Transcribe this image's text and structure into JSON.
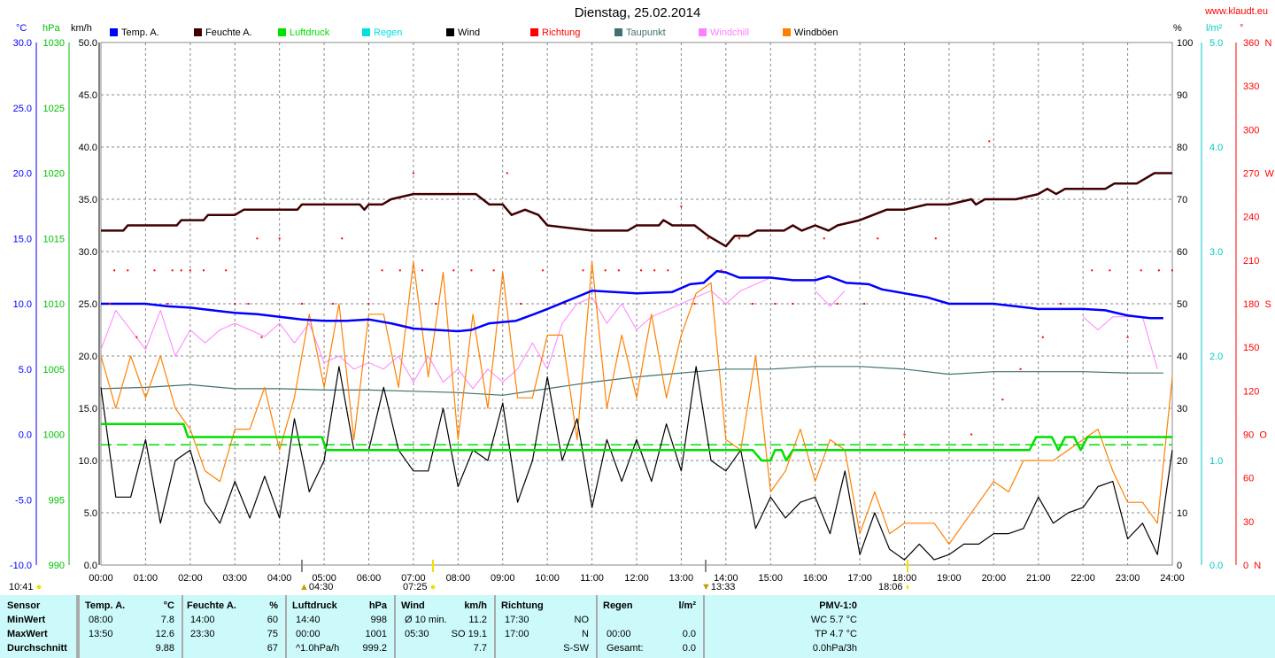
{
  "title": "Dienstag, 25.02.2014",
  "site": "www.klaudt.eu",
  "units": {
    "temp": "°C",
    "pressure": "hPa",
    "wind": "km/h",
    "humidity": "%",
    "rain": "l/m²",
    "direction": "°"
  },
  "legend": [
    {
      "label": "Temp. A.",
      "color": "#0000ff"
    },
    {
      "label": "Feuchte A.",
      "color": "#400000"
    },
    {
      "label": "Luftdruck",
      "color": "#00e000"
    },
    {
      "label": "Regen",
      "color": "#00e0e0"
    },
    {
      "label": "Wind",
      "color": "#000000"
    },
    {
      "label": "Richtung",
      "color": "#ff0000"
    },
    {
      "label": "Taupunkt",
      "color": "#407070"
    },
    {
      "label": "Windchill",
      "color": "#ff80ff"
    },
    {
      "label": "Windböen",
      "color": "#ff8000"
    }
  ],
  "astro": {
    "moon_time": "10:41",
    "moonset": "04:30",
    "sunrise": "07:25",
    "transit": "13:33",
    "sunset": "18:06"
  },
  "chart_data": {
    "type": "line",
    "title": "Dienstag, 25.02.2014",
    "x_ticks": [
      "00:00",
      "01:00",
      "02:00",
      "03:00",
      "04:00",
      "05:00",
      "06:00",
      "07:00",
      "08:00",
      "09:00",
      "10:00",
      "11:00",
      "12:00",
      "13:00",
      "14:00",
      "15:00",
      "16:00",
      "17:00",
      "18:00",
      "19:00",
      "20:00",
      "21:00",
      "22:00",
      "23:00",
      "24:00"
    ],
    "axes": {
      "temp": {
        "range": [
          -10,
          30
        ],
        "ticks": [
          "-10.0",
          "-5.0",
          "0.0",
          "5.0",
          "10.0",
          "15.0",
          "20.0",
          "25.0",
          "30.0"
        ]
      },
      "pressure": {
        "range": [
          990,
          1030
        ],
        "ticks": [
          "990",
          "995",
          "1000",
          "1005",
          "1010",
          "1015",
          "1020",
          "1025",
          "1030"
        ]
      },
      "wind": {
        "range": [
          0,
          50
        ],
        "ticks": [
          "0.0",
          "5.0",
          "10.0",
          "15.0",
          "20.0",
          "25.0",
          "30.0",
          "35.0",
          "40.0",
          "45.0",
          "50.0"
        ]
      },
      "humidity": {
        "range": [
          0,
          100
        ],
        "ticks": [
          "0",
          "10",
          "20",
          "30",
          "40",
          "50",
          "60",
          "70",
          "80",
          "90",
          "100"
        ]
      },
      "rain": {
        "range": [
          0,
          5
        ],
        "ticks": [
          "0.0",
          "1.0",
          "2.0",
          "3.0",
          "4.0",
          "5.0"
        ]
      },
      "direction": {
        "range": [
          0,
          360
        ],
        "ticks": [
          "0  N",
          "30",
          "60",
          "90  O",
          "120",
          "150",
          "180  S",
          "210",
          "240",
          "270  W",
          "300",
          "330",
          "360  N"
        ]
      }
    },
    "grid": true,
    "series": {
      "temperature": [
        [
          0,
          10.0
        ],
        [
          1,
          10.0
        ],
        [
          1.5,
          9.8
        ],
        [
          2,
          9.7
        ],
        [
          2.5,
          9.5
        ],
        [
          3,
          9.3
        ],
        [
          3.5,
          9.2
        ],
        [
          4,
          9.0
        ],
        [
          4.5,
          8.8
        ],
        [
          5,
          8.7
        ],
        [
          5.5,
          8.7
        ],
        [
          6,
          8.8
        ],
        [
          6.5,
          8.5
        ],
        [
          7,
          8.1
        ],
        [
          7.5,
          8.0
        ],
        [
          8,
          7.9
        ],
        [
          8.3,
          8.0
        ],
        [
          8.7,
          8.5
        ],
        [
          9.3,
          8.7
        ],
        [
          9.7,
          9.2
        ],
        [
          10,
          9.6
        ],
        [
          10.5,
          10.3
        ],
        [
          11,
          11.0
        ],
        [
          11.5,
          10.9
        ],
        [
          12,
          10.8
        ],
        [
          12.8,
          10.9
        ],
        [
          13.2,
          11.5
        ],
        [
          13.5,
          11.6
        ],
        [
          13.8,
          12.5
        ],
        [
          14,
          12.4
        ],
        [
          14.3,
          12.0
        ],
        [
          15,
          12.0
        ],
        [
          15.5,
          11.8
        ],
        [
          16,
          11.8
        ],
        [
          16.3,
          12.1
        ],
        [
          16.7,
          11.6
        ],
        [
          17.2,
          11.5
        ],
        [
          17.5,
          11.1
        ],
        [
          18,
          10.8
        ],
        [
          18.5,
          10.5
        ],
        [
          19,
          10.0
        ],
        [
          20,
          10.0
        ],
        [
          20.5,
          9.8
        ],
        [
          21,
          9.6
        ],
        [
          22,
          9.6
        ],
        [
          22.5,
          9.5
        ],
        [
          23,
          9.1
        ],
        [
          23.5,
          8.9
        ],
        [
          23.8,
          8.9
        ]
      ],
      "humidity": [
        [
          0,
          64
        ],
        [
          0.5,
          64
        ],
        [
          0.6,
          65
        ],
        [
          1.7,
          65
        ],
        [
          1.8,
          66
        ],
        [
          2.3,
          66
        ],
        [
          2.4,
          67
        ],
        [
          3,
          67
        ],
        [
          3.2,
          68
        ],
        [
          4.4,
          68
        ],
        [
          4.5,
          69
        ],
        [
          5.8,
          69
        ],
        [
          5.9,
          68
        ],
        [
          6,
          69
        ],
        [
          6.3,
          69
        ],
        [
          6.5,
          70
        ],
        [
          7,
          71
        ],
        [
          8.4,
          71
        ],
        [
          8.7,
          69
        ],
        [
          9,
          69
        ],
        [
          9.2,
          67
        ],
        [
          9.5,
          68
        ],
        [
          9.8,
          67
        ],
        [
          10,
          65
        ],
        [
          11,
          64
        ],
        [
          11.8,
          64
        ],
        [
          12,
          65
        ],
        [
          12.5,
          65
        ],
        [
          12.6,
          66
        ],
        [
          12.8,
          65
        ],
        [
          13.3,
          65
        ],
        [
          13.6,
          63
        ],
        [
          14,
          61
        ],
        [
          14.2,
          63
        ],
        [
          14.5,
          63
        ],
        [
          14.7,
          64
        ],
        [
          15.3,
          64
        ],
        [
          15.5,
          65
        ],
        [
          15.7,
          64
        ],
        [
          16,
          65
        ],
        [
          16.3,
          64
        ],
        [
          16.5,
          65
        ],
        [
          17,
          66
        ],
        [
          17.3,
          67
        ],
        [
          17.6,
          68
        ],
        [
          18,
          68
        ],
        [
          18.5,
          69
        ],
        [
          19,
          69
        ],
        [
          19.5,
          70
        ],
        [
          19.6,
          69
        ],
        [
          19.8,
          70
        ],
        [
          20.5,
          70
        ],
        [
          21,
          71
        ],
        [
          21.2,
          72
        ],
        [
          21.4,
          71
        ],
        [
          21.6,
          72
        ],
        [
          22.5,
          72
        ],
        [
          22.7,
          73
        ],
        [
          23.2,
          73
        ],
        [
          23.4,
          74
        ],
        [
          23.6,
          75
        ],
        [
          24,
          75
        ]
      ],
      "pressure": [
        [
          0,
          1000.8
        ],
        [
          1.85,
          1000.8
        ],
        [
          1.95,
          999.8
        ],
        [
          4.95,
          999.8
        ],
        [
          5.05,
          998.8
        ],
        [
          14.6,
          998.8
        ],
        [
          14.8,
          998.0
        ],
        [
          15.0,
          998.0
        ],
        [
          15.1,
          998.8
        ],
        [
          15.25,
          998.8
        ],
        [
          15.35,
          998.0
        ],
        [
          15.5,
          998.8
        ],
        [
          20.8,
          998.8
        ],
        [
          20.95,
          999.8
        ],
        [
          21.3,
          999.8
        ],
        [
          21.45,
          998.8
        ],
        [
          21.6,
          999.8
        ],
        [
          21.8,
          999.8
        ],
        [
          21.95,
          998.8
        ],
        [
          22.1,
          999.8
        ],
        [
          24,
          999.8
        ]
      ],
      "pressure_average": 999.2,
      "dewpoint": [
        [
          0,
          3.5
        ],
        [
          1,
          3.6
        ],
        [
          2,
          3.8
        ],
        [
          3,
          3.5
        ],
        [
          4,
          3.5
        ],
        [
          5,
          3.4
        ],
        [
          6,
          3.4
        ],
        [
          7,
          3.3
        ],
        [
          8,
          3.2
        ],
        [
          9,
          3.0
        ],
        [
          10,
          3.5
        ],
        [
          11,
          4.0
        ],
        [
          12,
          4.4
        ],
        [
          13,
          4.7
        ],
        [
          14,
          5.0
        ],
        [
          15,
          5.0
        ],
        [
          16,
          5.2
        ],
        [
          17,
          5.2
        ],
        [
          18,
          5.0
        ],
        [
          19,
          4.6
        ],
        [
          20,
          4.8
        ],
        [
          21,
          4.8
        ],
        [
          22,
          4.8
        ],
        [
          23,
          4.7
        ],
        [
          23.8,
          4.7
        ]
      ],
      "windchill": [
        6.5,
        9.5,
        8,
        6.5,
        9.5,
        6,
        8,
        7,
        8,
        8.5,
        8,
        7.5,
        8.5,
        7,
        8.5,
        5.5,
        6,
        5,
        5.5,
        5,
        6,
        4,
        6,
        4,
        5,
        3.5,
        5,
        4,
        5,
        7,
        5,
        8.5,
        10,
        10.5,
        8.5,
        10,
        8,
        9,
        9.5,
        10,
        10.5,
        11,
        10,
        11,
        11.5,
        12,
        null,
        null,
        11,
        9.8,
        11,
        null,
        null,
        null,
        null,
        null,
        null,
        null,
        null,
        null,
        null,
        null,
        null,
        null,
        null,
        null,
        9,
        8,
        9,
        9,
        9,
        5,
        null
      ],
      "wind": [
        17,
        6.5,
        6.5,
        12,
        4,
        10,
        11,
        6,
        4,
        8,
        4.5,
        8.5,
        4.5,
        14,
        7,
        10,
        19,
        11,
        11,
        17,
        11,
        9,
        9,
        15,
        7.5,
        11,
        10,
        15.5,
        6,
        10,
        18,
        10,
        14,
        5.5,
        12,
        8,
        12,
        8,
        13.5,
        9,
        19,
        10,
        9,
        11,
        3.5,
        6.5,
        4.5,
        6,
        6.5,
        3,
        9,
        1,
        5,
        1.5,
        0.5,
        2,
        0.5,
        1,
        2,
        2,
        3,
        3,
        3.5,
        6.5,
        4,
        5,
        5.5,
        7.5,
        8,
        2.5,
        4,
        1,
        11
      ],
      "gusts": [
        20,
        15,
        20,
        16,
        20,
        15,
        13,
        9,
        8,
        13,
        13,
        17,
        11,
        16,
        24,
        17,
        25,
        12,
        24,
        24,
        17,
        29,
        18,
        28,
        12,
        24,
        15,
        28,
        16,
        16,
        22,
        22,
        12,
        29,
        15,
        22,
        16,
        24,
        16,
        22,
        26,
        27,
        12,
        11,
        20,
        7,
        9,
        13,
        8,
        12,
        11,
        3,
        7,
        3,
        4,
        4,
        4,
        2,
        4,
        6,
        8,
        7,
        10,
        10,
        10,
        11,
        12,
        13,
        9,
        6,
        6,
        4,
        18
      ],
      "direction": [
        [
          0.2,
          180
        ],
        [
          0.3,
          203
        ],
        [
          0.6,
          203
        ],
        [
          0.8,
          157
        ],
        [
          1.2,
          203
        ],
        [
          1.5,
          180
        ],
        [
          1.6,
          203
        ],
        [
          1.8,
          203
        ],
        [
          2.0,
          203
        ],
        [
          2.3,
          203
        ],
        [
          2.8,
          203
        ],
        [
          3.0,
          180
        ],
        [
          3.3,
          180
        ],
        [
          3.5,
          225
        ],
        [
          3.6,
          157
        ],
        [
          4.0,
          225
        ],
        [
          4.5,
          180
        ],
        [
          5.2,
          180
        ],
        [
          5.4,
          225
        ],
        [
          6.0,
          180
        ],
        [
          6.3,
          203
        ],
        [
          6.7,
          203
        ],
        [
          7.0,
          270
        ],
        [
          7.2,
          203
        ],
        [
          7.5,
          180
        ],
        [
          7.9,
          203
        ],
        [
          8.3,
          203
        ],
        [
          8.8,
          203
        ],
        [
          9.1,
          270
        ],
        [
          9.4,
          180
        ],
        [
          9.9,
          203
        ],
        [
          10.4,
          180
        ],
        [
          10.8,
          203
        ],
        [
          11.3,
          203
        ],
        [
          11.6,
          203
        ],
        [
          12.1,
          203
        ],
        [
          12.4,
          203
        ],
        [
          12.7,
          203
        ],
        [
          13.0,
          247
        ],
        [
          13.3,
          180
        ],
        [
          13.6,
          225
        ],
        [
          13.9,
          203
        ],
        [
          14.3,
          225
        ],
        [
          14.6,
          180
        ],
        [
          15.1,
          180
        ],
        [
          15.5,
          180
        ],
        [
          16.2,
          225
        ],
        [
          16.5,
          180
        ],
        [
          17.1,
          180
        ],
        [
          17.4,
          225
        ],
        [
          18.0,
          90
        ],
        [
          18.7,
          225
        ],
        [
          19.5,
          90
        ],
        [
          19.9,
          292
        ],
        [
          20.2,
          114
        ],
        [
          20.6,
          135
        ],
        [
          21.1,
          157
        ],
        [
          21.5,
          180
        ],
        [
          22.2,
          203
        ],
        [
          22.6,
          203
        ],
        [
          23.0,
          157
        ],
        [
          23.3,
          203
        ],
        [
          23.7,
          203
        ],
        [
          24.0,
          203
        ]
      ]
    }
  },
  "table": {
    "sensor": {
      "header": "Sensor",
      "rows": [
        "MinWert",
        "MaxWert",
        "Durchschnitt"
      ]
    },
    "columns": [
      {
        "header": "Temp. A.",
        "unit": "°C",
        "rows": [
          [
            "08:00",
            "7.8"
          ],
          [
            "13:50",
            "12.6"
          ],
          [
            "",
            "9.88"
          ]
        ]
      },
      {
        "header": "Feuchte A.",
        "unit": "%",
        "rows": [
          [
            "14:00",
            "60"
          ],
          [
            "23:30",
            "75"
          ],
          [
            "",
            "67"
          ]
        ]
      },
      {
        "header": "Luftdruck",
        "unit": "hPa",
        "rows": [
          [
            "14:40",
            "998"
          ],
          [
            "00:00",
            "1001"
          ],
          [
            "^1.0hPa/h",
            "999.2"
          ]
        ]
      },
      {
        "header": "Wind",
        "unit": "km/h",
        "rows": [
          [
            "Ø 10 min.",
            "11.2"
          ],
          [
            "05:30",
            "SO 19.1"
          ],
          [
            "",
            "7.7"
          ]
        ]
      },
      {
        "header": "Richtung",
        "unit": "",
        "rows": [
          [
            "17:30",
            "NO"
          ],
          [
            "17:00",
            "N"
          ],
          [
            "",
            "S-SW"
          ]
        ]
      },
      {
        "header": "Regen",
        "unit": "l/m²",
        "rows": [
          [
            "",
            ""
          ],
          [
            "00:00",
            "0.0"
          ],
          [
            "Gesamt:",
            "0.0"
          ]
        ]
      }
    ],
    "pmv": {
      "header": "PMV-1:0",
      "rows": [
        "WC 5.7 °C",
        "TP 4.7 °C",
        "0.0hPa/3h"
      ]
    }
  }
}
